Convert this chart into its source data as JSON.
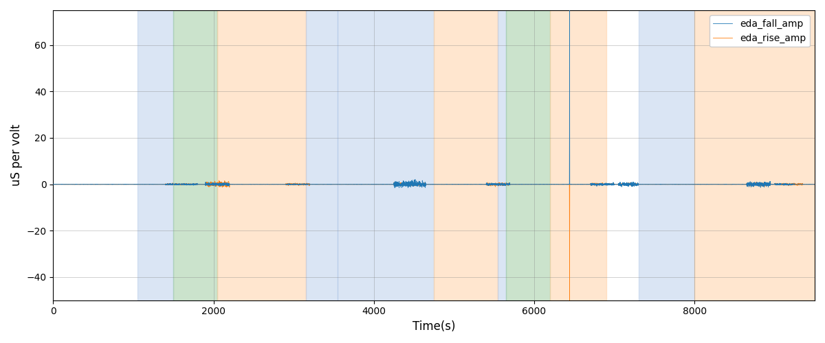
{
  "xlabel": "Time(s)",
  "ylabel": "uS per volt",
  "xlim": [
    0,
    9500
  ],
  "ylim": [
    -50,
    75
  ],
  "yticks": [
    -40,
    -20,
    0,
    20,
    40,
    60
  ],
  "legend_labels": [
    "eda_fall_amp",
    "eda_rise_amp"
  ],
  "line_colors": [
    "#1f77b4",
    "#ff7f0e"
  ],
  "bg_bands": [
    {
      "xmin": 1050,
      "xmax": 1500,
      "color": "#aec6e8",
      "alpha": 0.45
    },
    {
      "xmin": 1500,
      "xmax": 2050,
      "color": "#98c99a",
      "alpha": 0.5
    },
    {
      "xmin": 2050,
      "xmax": 3150,
      "color": "#ffcfa0",
      "alpha": 0.5
    },
    {
      "xmin": 3150,
      "xmax": 3550,
      "color": "#aec6e8",
      "alpha": 0.45
    },
    {
      "xmin": 3550,
      "xmax": 4750,
      "color": "#aec6e8",
      "alpha": 0.45
    },
    {
      "xmin": 4750,
      "xmax": 5550,
      "color": "#ffcfa0",
      "alpha": 0.5
    },
    {
      "xmin": 5550,
      "xmax": 5650,
      "color": "#aec6e8",
      "alpha": 0.45
    },
    {
      "xmin": 5650,
      "xmax": 6200,
      "color": "#98c99a",
      "alpha": 0.5
    },
    {
      "xmin": 6200,
      "xmax": 6900,
      "color": "#ffcfa0",
      "alpha": 0.5
    },
    {
      "xmin": 7300,
      "xmax": 8000,
      "color": "#aec6e8",
      "alpha": 0.45
    },
    {
      "xmin": 8000,
      "xmax": 9500,
      "color": "#ffcfa0",
      "alpha": 0.5
    }
  ],
  "seed": 0,
  "n_points": 9500,
  "activity_regions_fall": [
    {
      "start": 1400,
      "end": 1800,
      "scale": 0.4
    },
    {
      "start": 1900,
      "end": 2200,
      "scale": 0.8
    },
    {
      "start": 2900,
      "end": 3200,
      "scale": 0.3
    },
    {
      "start": 4250,
      "end": 4650,
      "scale": 1.5
    },
    {
      "start": 5400,
      "end": 5700,
      "scale": 0.6
    },
    {
      "start": 6440,
      "end": 6445,
      "scale": 75.0
    },
    {
      "start": 6700,
      "end": 7000,
      "scale": 0.6
    },
    {
      "start": 7050,
      "end": 7300,
      "scale": 0.9
    },
    {
      "start": 8650,
      "end": 8950,
      "scale": 1.2
    },
    {
      "start": 9000,
      "end": 9250,
      "scale": 0.4
    }
  ],
  "activity_regions_rise": [
    {
      "start": 1400,
      "end": 1800,
      "scale": -0.4
    },
    {
      "start": 1900,
      "end": 2200,
      "scale": -1.2
    },
    {
      "start": 2900,
      "end": 3200,
      "scale": -0.5
    },
    {
      "start": 4250,
      "end": 4650,
      "scale": -0.8
    },
    {
      "start": 5400,
      "end": 5700,
      "scale": -0.7
    },
    {
      "start": 6440,
      "end": 6445,
      "scale": -50.0
    },
    {
      "start": 6700,
      "end": 7000,
      "scale": -0.5
    },
    {
      "start": 7050,
      "end": 7300,
      "scale": -0.7
    },
    {
      "start": 8650,
      "end": 8950,
      "scale": -0.8
    },
    {
      "start": 9000,
      "end": 9350,
      "scale": -0.5
    }
  ]
}
